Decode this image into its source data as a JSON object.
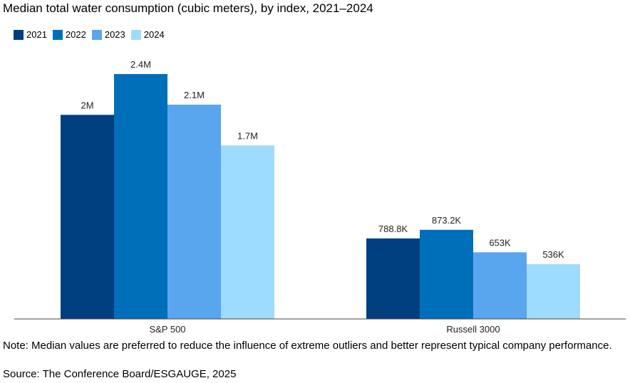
{
  "chart_data": {
    "type": "bar",
    "title": "Median total water consumption (cubic meters), by index, 2021–2024",
    "categories": [
      "S&P 500",
      "Russell 3000"
    ],
    "series": [
      {
        "name": "2021",
        "color": "#003f7f",
        "values": [
          2000000,
          788800
        ],
        "labels": [
          "2M",
          "788.8K"
        ]
      },
      {
        "name": "2022",
        "color": "#006fba",
        "values": [
          2400000,
          873200
        ],
        "labels": [
          "2.4M",
          "873.2K"
        ]
      },
      {
        "name": "2023",
        "color": "#5aa6ee",
        "values": [
          2100000,
          653000
        ],
        "labels": [
          "2.1M",
          "653K"
        ]
      },
      {
        "name": "2024",
        "color": "#9ddcfe",
        "values": [
          1700000,
          536000
        ],
        "labels": [
          "1.7M",
          "536K"
        ]
      }
    ],
    "ylim": [
      0,
      2400000
    ],
    "legend_position": "top-left",
    "grid": false
  },
  "note": "Note: Median values are preferred to reduce the influence of extreme outliers and better represent typical company performance.",
  "source": "Source: The Conference Board/ESGAUGE, 2025"
}
